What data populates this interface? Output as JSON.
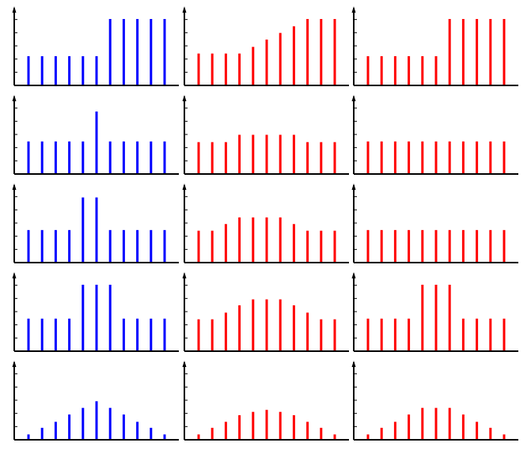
{
  "chart_data": [
    {
      "type": "bar",
      "ylim": [
        0,
        10
      ],
      "grid": false,
      "color": "#0000ff",
      "values": [
        4.4,
        4.4,
        4.4,
        4.4,
        4.4,
        4.4,
        10,
        10,
        10,
        10,
        10
      ]
    },
    {
      "type": "bar",
      "ylim": [
        0,
        10
      ],
      "grid": false,
      "color": "#ff0000",
      "values": [
        4.8,
        4.8,
        4.8,
        4.8,
        5.8,
        6.9,
        7.9,
        8.9,
        10,
        10,
        10
      ]
    },
    {
      "type": "bar",
      "ylim": [
        0,
        10
      ],
      "grid": false,
      "color": "#ff0000",
      "values": [
        4.4,
        4.4,
        4.4,
        4.4,
        4.4,
        4.4,
        10,
        10,
        10,
        10,
        10
      ]
    },
    {
      "type": "bar",
      "ylim": [
        0,
        10
      ],
      "grid": false,
      "color": "#0000ff",
      "values": [
        4.9,
        4.9,
        4.9,
        4.9,
        4.9,
        9.4,
        4.9,
        4.9,
        4.9,
        4.9,
        4.9
      ]
    },
    {
      "type": "bar",
      "ylim": [
        0,
        10
      ],
      "grid": false,
      "color": "#ff0000",
      "values": [
        4.8,
        4.8,
        4.8,
        5.9,
        5.9,
        5.9,
        5.9,
        5.9,
        4.8,
        4.8,
        4.8
      ]
    },
    {
      "type": "bar",
      "ylim": [
        0,
        10
      ],
      "grid": false,
      "color": "#ff0000",
      "values": [
        4.9,
        4.9,
        4.9,
        4.9,
        4.9,
        4.9,
        4.9,
        4.9,
        4.9,
        4.9,
        4.9
      ]
    },
    {
      "type": "bar",
      "ylim": [
        0,
        10
      ],
      "grid": false,
      "color": "#0000ff",
      "values": [
        4.9,
        4.9,
        4.9,
        4.9,
        9.8,
        9.8,
        4.9,
        4.9,
        4.9,
        4.9,
        4.9
      ]
    },
    {
      "type": "bar",
      "ylim": [
        0,
        10
      ],
      "grid": false,
      "color": "#ff0000",
      "values": [
        4.8,
        4.8,
        5.8,
        6.8,
        6.8,
        6.8,
        6.8,
        5.8,
        4.8,
        4.8,
        4.8
      ]
    },
    {
      "type": "bar",
      "ylim": [
        0,
        10
      ],
      "grid": false,
      "color": "#ff0000",
      "values": [
        4.9,
        4.9,
        4.9,
        4.9,
        4.9,
        4.9,
        4.9,
        4.9,
        4.9,
        4.9,
        4.9
      ]
    },
    {
      "type": "bar",
      "ylim": [
        0,
        10
      ],
      "grid": false,
      "color": "#0000ff",
      "values": [
        4.9,
        4.9,
        4.9,
        4.9,
        10,
        10,
        10,
        4.9,
        4.9,
        4.9,
        4.9
      ]
    },
    {
      "type": "bar",
      "ylim": [
        0,
        10
      ],
      "grid": false,
      "color": "#ff0000",
      "values": [
        4.8,
        4.8,
        5.8,
        6.9,
        7.8,
        7.8,
        7.8,
        6.9,
        5.8,
        4.8,
        4.8
      ]
    },
    {
      "type": "bar",
      "ylim": [
        0,
        10
      ],
      "grid": false,
      "color": "#ff0000",
      "values": [
        4.9,
        4.9,
        4.9,
        4.9,
        10,
        10,
        10,
        4.9,
        4.9,
        4.9,
        4.9
      ]
    },
    {
      "type": "bar",
      "ylim": [
        0,
        10
      ],
      "grid": false,
      "color": "#0000ff",
      "values": [
        0.8,
        1.8,
        2.7,
        3.8,
        4.8,
        5.8,
        4.8,
        3.8,
        2.7,
        1.8,
        0.8
      ]
    },
    {
      "type": "bar",
      "ylim": [
        0,
        10
      ],
      "grid": false,
      "color": "#ff0000",
      "values": [
        0.8,
        1.8,
        2.7,
        3.7,
        4.2,
        4.5,
        4.2,
        3.7,
        2.7,
        1.8,
        0.8
      ]
    },
    {
      "type": "bar",
      "ylim": [
        0,
        10
      ],
      "grid": false,
      "color": "#ff0000",
      "values": [
        0.8,
        1.8,
        2.7,
        3.8,
        4.8,
        4.8,
        4.8,
        3.8,
        2.7,
        1.8,
        0.8
      ]
    }
  ]
}
